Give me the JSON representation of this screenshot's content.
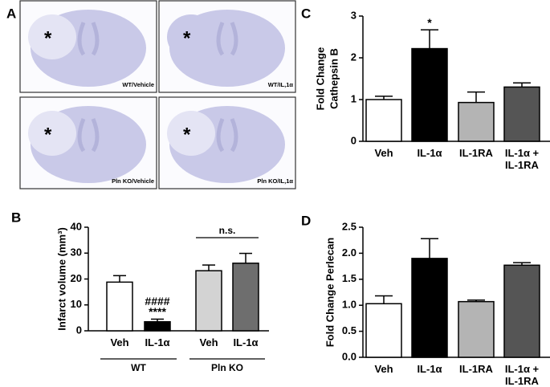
{
  "panel_a": {
    "label": "A",
    "images": [
      {
        "marker": "*",
        "caption": "WT/Vehicle"
      },
      {
        "marker": "*",
        "caption": "WT/IL,1α"
      },
      {
        "marker": "*",
        "caption": "Pln KO/Vehicle"
      },
      {
        "marker": "*",
        "caption": "Pln KO/IL,1α"
      }
    ]
  },
  "chart_data": [
    {
      "type": "bar",
      "label": "B",
      "ylabel": "Infarct volume (mm³)",
      "categories": [
        "Veh",
        "IL-1α",
        "Veh",
        "IL-1α"
      ],
      "groups": [
        "WT",
        "Pln KO"
      ],
      "values": [
        18.8,
        3.5,
        23.2,
        26.1
      ],
      "errors": [
        2.5,
        1.0,
        2.2,
        3.8
      ],
      "colors": [
        "#ffffff",
        "#000000",
        "#d3d3d3",
        "#6e6e6e"
      ],
      "ylim": [
        0,
        40
      ],
      "yticks": [
        0,
        10,
        20,
        30,
        40
      ],
      "annotations": [
        "####",
        "****"
      ],
      "comparison": "n.s."
    },
    {
      "type": "bar",
      "label": "C",
      "ylabel": [
        "Fold Change",
        "Cathepsin B"
      ],
      "categories": [
        "Veh",
        "IL-1α",
        "IL-1RA",
        "IL-1α + IL-1RA"
      ],
      "values": [
        1.0,
        2.22,
        0.93,
        1.3
      ],
      "errors": [
        0.08,
        0.45,
        0.25,
        0.1
      ],
      "colors": [
        "#ffffff",
        "#000000",
        "#b4b4b4",
        "#555555"
      ],
      "ylim": [
        0,
        3
      ],
      "yticks": [
        0,
        1,
        2,
        3
      ],
      "annotations": [
        "*"
      ]
    },
    {
      "type": "bar",
      "label": "D",
      "ylabel": "Fold Change Perlecan",
      "categories": [
        "Veh",
        "IL-1α",
        "IL-1RA",
        "IL-1α + IL-1RA"
      ],
      "values": [
        1.03,
        1.9,
        1.07,
        1.77
      ],
      "errors": [
        0.15,
        0.38,
        0.03,
        0.05
      ],
      "colors": [
        "#ffffff",
        "#000000",
        "#b4b4b4",
        "#555555"
      ],
      "ylim": [
        0,
        2.5
      ],
      "yticks": [
        {
          "value": 0,
          "label": "0.0"
        },
        0.5,
        {
          "value": 1,
          "label": "1.0"
        },
        1.5,
        {
          "value": 2,
          "label": "2.0"
        },
        2.5
      ]
    }
  ]
}
